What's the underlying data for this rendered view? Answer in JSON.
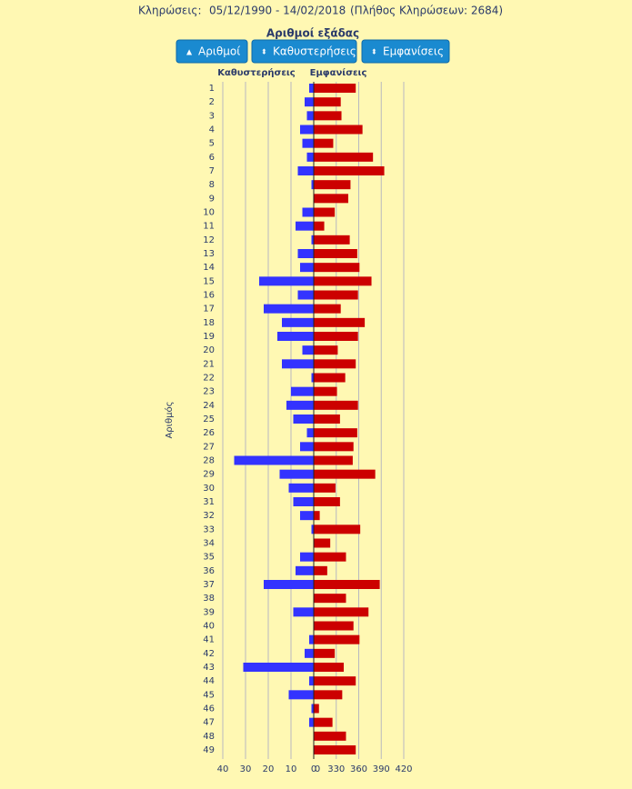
{
  "header": {
    "label": "Κληρώσεις:",
    "range": "05/12/1990 - 14/02/2018",
    "count": "(Πλήθος Κληρώσεων: 2684)"
  },
  "buttons": [
    "Αριθμοί",
    "Καθυστερήσεις",
    "Εμφανίσεις"
  ],
  "chart_data": {
    "type": "butterfly",
    "title": "Αριθμοί εξάδας",
    "y_label": "Αριθμός",
    "categories": [
      "1",
      "2",
      "3",
      "4",
      "5",
      "6",
      "7",
      "8",
      "9",
      "10",
      "11",
      "12",
      "13",
      "14",
      "15",
      "16",
      "17",
      "18",
      "19",
      "20",
      "21",
      "22",
      "23",
      "24",
      "25",
      "26",
      "27",
      "28",
      "29",
      "30",
      "31",
      "32",
      "33",
      "34",
      "35",
      "36",
      "37",
      "38",
      "39",
      "40",
      "41",
      "42",
      "43",
      "44",
      "45",
      "46",
      "47",
      "48",
      "49"
    ],
    "series": [
      {
        "name": "Καθυστερήσεις",
        "color": "#3333ff",
        "axis": "x",
        "values": [
          2,
          4,
          3,
          6,
          5,
          3,
          7,
          1,
          0,
          5,
          8,
          1,
          7,
          6,
          24,
          7,
          22,
          14,
          16,
          5,
          14,
          1,
          10,
          12,
          9,
          3,
          6,
          35,
          15,
          11,
          9,
          6,
          1,
          0,
          6,
          8,
          22,
          0,
          9,
          0,
          2,
          4,
          31,
          2,
          11,
          1,
          2,
          0,
          0
        ]
      },
      {
        "name": "Εμφανίσεις",
        "color": "#cc0000",
        "axis": "x2",
        "values": [
          356,
          336,
          337,
          365,
          326,
          379,
          394,
          349,
          346,
          328,
          314,
          348,
          358,
          361,
          377,
          359,
          336,
          368,
          359,
          332,
          356,
          342,
          331,
          359,
          335,
          358,
          353,
          352,
          382,
          329,
          335,
          308,
          362,
          322,
          343,
          318,
          388,
          343,
          373,
          353,
          361,
          328,
          340,
          356,
          338,
          307,
          325,
          343,
          356
        ]
      }
    ],
    "xlim": [
      40,
      0
    ],
    "xticks": [
      40,
      30,
      20,
      10,
      0
    ],
    "x2lim": [
      300,
      420
    ],
    "x2ticks": [
      {
        "value": 300,
        "label": "0"
      },
      330,
      360,
      390,
      420
    ],
    "grid": true
  }
}
